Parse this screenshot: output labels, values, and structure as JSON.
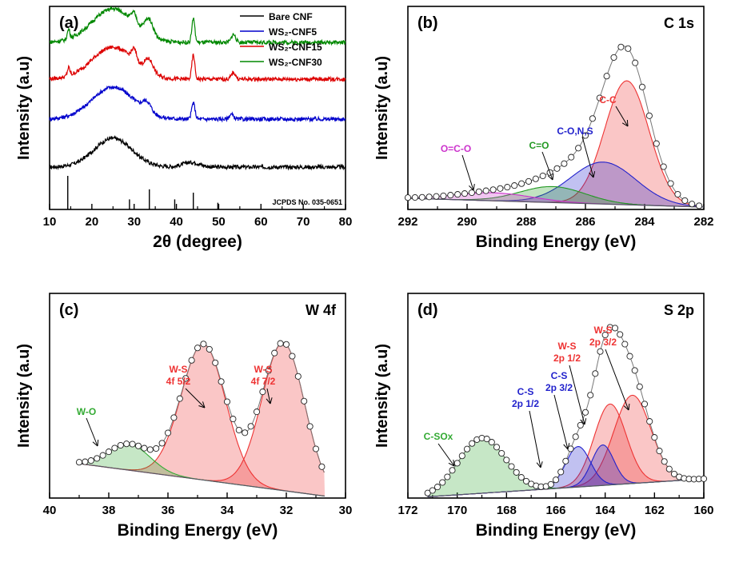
{
  "chart_data": [
    {
      "panel": "(a)",
      "type": "line",
      "xlabel": "2θ (degree)",
      "ylabel": "Intensity (a.u)",
      "xlim": [
        10,
        80
      ],
      "xticks": [
        "10",
        "20",
        "30",
        "40",
        "50",
        "60",
        "70",
        "80"
      ],
      "legend_position": "top-right",
      "series": [
        {
          "name": "Bare CNF",
          "color": "#000000",
          "offset": 0.0,
          "peaks": [
            [
              25,
              0.18,
              4.5
            ],
            [
              43.5,
              0.03,
              2
            ]
          ]
        },
        {
          "name": "WS₂-CNF5",
          "color": "#0000cc",
          "offset": 0.3,
          "peaks": [
            [
              25,
              0.2,
              5
            ],
            [
              33,
              0.06,
              1
            ],
            [
              44,
              0.1,
              0.4
            ],
            [
              53,
              0.03,
              0.5
            ]
          ]
        },
        {
          "name": "WS₂-CNF15",
          "color": "#dd0000",
          "offset": 0.55,
          "peaks": [
            [
              14.5,
              0.05,
              0.3
            ],
            [
              25,
              0.2,
              5
            ],
            [
              30,
              0.07,
              0.6
            ],
            [
              33.5,
              0.08,
              1
            ],
            [
              44,
              0.15,
              0.35
            ],
            [
              53.5,
              0.04,
              0.5
            ]
          ]
        },
        {
          "name": "WS₂-CNF30",
          "color": "#008800",
          "offset": 0.78,
          "peaks": [
            [
              14.5,
              0.06,
              0.3
            ],
            [
              25,
              0.21,
              5
            ],
            [
              30,
              0.06,
              0.6
            ],
            [
              33.5,
              0.1,
              1
            ],
            [
              44,
              0.15,
              0.35
            ],
            [
              53.5,
              0.05,
              0.5
            ]
          ]
        }
      ],
      "reference": {
        "label": "JCPDS No. 035-0651",
        "positions": [
          14.3,
          28.9,
          33.6,
          39.6,
          44.0,
          49.8
        ],
        "heights": [
          1.0,
          0.3,
          0.6,
          0.3,
          0.5,
          0.2
        ]
      }
    },
    {
      "panel": "(b)",
      "type": "area",
      "title": "C 1s",
      "xlabel": "Binding Energy (eV)",
      "ylabel": "Intensity (a.u)",
      "xlim": [
        292,
        282
      ],
      "xticks": [
        "292",
        "290",
        "288",
        "286",
        "284",
        "282"
      ],
      "components": [
        {
          "label": "C-C",
          "center": 284.6,
          "height": 0.62,
          "width": 0.75,
          "color": "#ee3333"
        },
        {
          "label": "C-O,N,S",
          "center": 285.4,
          "height": 0.21,
          "width": 1.1,
          "color": "#2222cc"
        },
        {
          "label": "C=O",
          "center": 287.1,
          "height": 0.08,
          "width": 1.1,
          "color": "#229922"
        },
        {
          "label": "O=C-O",
          "center": 289.1,
          "height": 0.04,
          "width": 1.3,
          "color": "#cc33cc"
        }
      ]
    },
    {
      "panel": "(c)",
      "type": "area",
      "title": "W 4f",
      "xlabel": "Binding Energy (eV)",
      "ylabel": "Intensity (a.u)",
      "xlim": [
        40,
        30
      ],
      "xticks": [
        "40",
        "38",
        "36",
        "34",
        "32",
        "30"
      ],
      "components": [
        {
          "label": "W-S 4f 7/2",
          "center": 32.1,
          "height": 0.74,
          "width": 0.72,
          "color": "#ee3333"
        },
        {
          "label": "W-S 4f 5/2",
          "center": 34.8,
          "height": 0.68,
          "width": 0.75,
          "color": "#ee3333"
        },
        {
          "label": "W-O",
          "center": 37.3,
          "height": 0.13,
          "width": 0.7,
          "color": "#33aa33"
        }
      ]
    },
    {
      "panel": "(d)",
      "type": "area",
      "title": "S 2p",
      "xlabel": "Binding Energy (eV)",
      "ylabel": "Intensity (a.u)",
      "xlim": [
        172,
        160
      ],
      "xticks": [
        "172",
        "170",
        "168",
        "166",
        "164",
        "162",
        "160"
      ],
      "components": [
        {
          "label": "W-S 2p 3/2",
          "center": 162.9,
          "height": 0.48,
          "width": 0.75,
          "color": "#ee3333"
        },
        {
          "label": "W-S 2p 1/2",
          "center": 163.8,
          "height": 0.44,
          "width": 0.65,
          "color": "#ee3333"
        },
        {
          "label": "C-S 2p 3/2",
          "center": 164.1,
          "height": 0.22,
          "width": 0.45,
          "color": "#2222cc"
        },
        {
          "label": "C-S 2p 1/2",
          "center": 165.1,
          "height": 0.22,
          "width": 0.5,
          "color": "#2222cc"
        },
        {
          "label": "C-SOx",
          "center": 169.0,
          "height": 0.3,
          "width": 0.95,
          "color": "#33aa33"
        }
      ]
    }
  ]
}
